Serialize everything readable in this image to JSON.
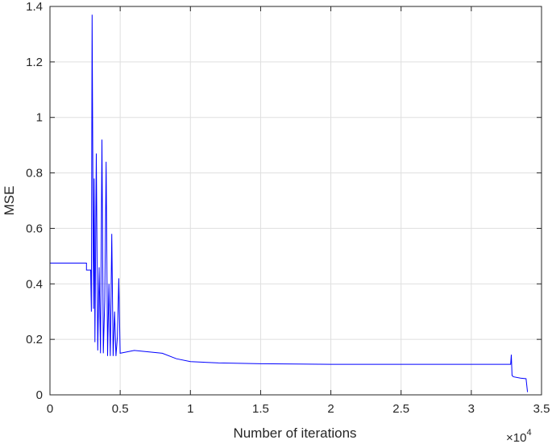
{
  "chart_data": {
    "type": "line",
    "title": "",
    "xlabel": "Number of iterations",
    "ylabel": "MSE",
    "x_exponent_label": "×10",
    "x_exponent_power": "4",
    "xlim": [
      0,
      35000
    ],
    "ylim": [
      0,
      1.4
    ],
    "x_ticks": [
      0,
      5000,
      10000,
      15000,
      20000,
      25000,
      30000,
      35000
    ],
    "x_tick_labels": [
      "0",
      "0.5",
      "1",
      "1.5",
      "2",
      "2.5",
      "3",
      "3.5"
    ],
    "y_ticks": [
      0,
      0.2,
      0.4,
      0.6,
      0.8,
      1.0,
      1.2,
      1.4
    ],
    "y_tick_labels": [
      "0",
      "0.2",
      "0.4",
      "0.6",
      "0.8",
      "1",
      "1.2",
      "1.4"
    ],
    "grid": true,
    "line_color": "#0000ff",
    "series": [
      {
        "name": "",
        "x": [
          0,
          2600,
          2600,
          2900,
          2950,
          3000,
          3050,
          3100,
          3150,
          3200,
          3300,
          3400,
          3500,
          3600,
          3700,
          3800,
          3900,
          4000,
          4100,
          4200,
          4300,
          4400,
          4500,
          4600,
          4700,
          4800,
          4900,
          5000,
          6000,
          7000,
          8000,
          9000,
          10000,
          12000,
          15000,
          20000,
          25000,
          30000,
          32800,
          32850,
          32900,
          33000,
          33500,
          33900,
          34000
        ],
        "y": [
          0.475,
          0.475,
          0.45,
          0.45,
          0.3,
          1.37,
          0.82,
          0.31,
          0.78,
          0.19,
          0.87,
          0.16,
          0.46,
          0.15,
          0.92,
          0.15,
          0.34,
          0.84,
          0.14,
          0.4,
          0.14,
          0.58,
          0.14,
          0.3,
          0.14,
          0.21,
          0.42,
          0.15,
          0.16,
          0.155,
          0.15,
          0.13,
          0.12,
          0.115,
          0.112,
          0.11,
          0.11,
          0.11,
          0.11,
          0.145,
          0.07,
          0.065,
          0.06,
          0.058,
          0.01
        ]
      }
    ]
  }
}
